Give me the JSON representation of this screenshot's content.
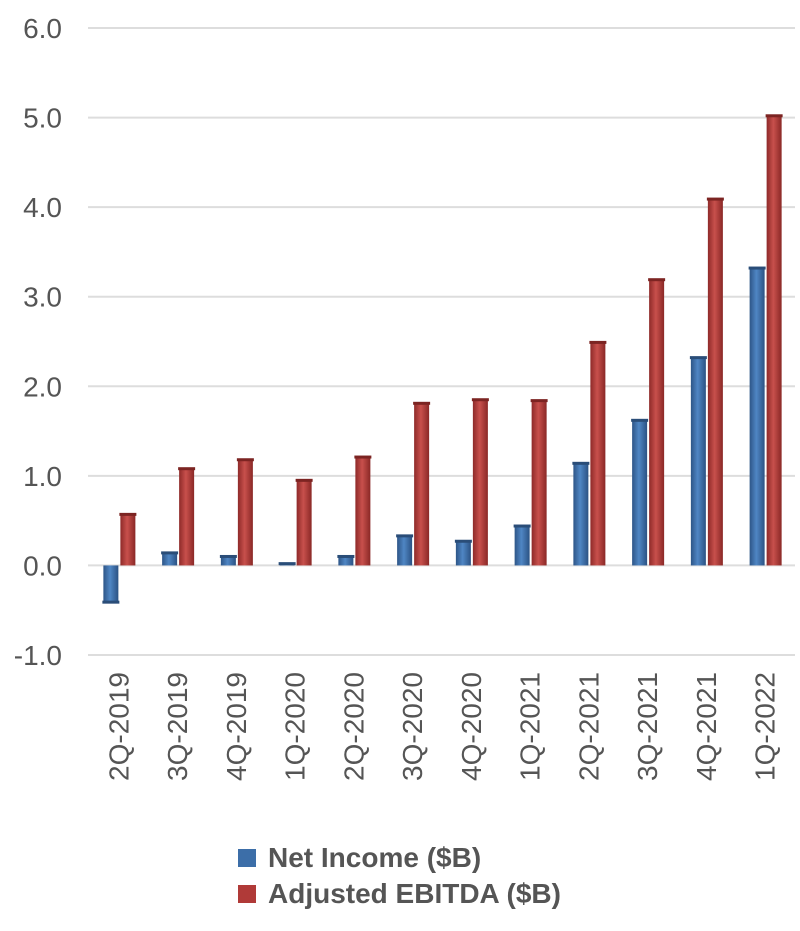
{
  "chart_data": {
    "type": "bar",
    "categories": [
      "2Q-2019",
      "3Q-2019",
      "4Q-2019",
      "1Q-2020",
      "2Q-2020",
      "3Q-2020",
      "4Q-2020",
      "1Q-2021",
      "2Q-2021",
      "3Q-2021",
      "4Q-2021",
      "1Q-2022"
    ],
    "series": [
      {
        "name": "Net Income ($B)",
        "color": "#3c6ea8",
        "values": [
          -0.41,
          0.14,
          0.1,
          0.02,
          0.1,
          0.33,
          0.27,
          0.44,
          1.14,
          1.62,
          2.32,
          3.32
        ]
      },
      {
        "name": "Adjusted EBITDA ($B)",
        "color": "#b03a38",
        "values": [
          0.57,
          1.08,
          1.18,
          0.95,
          1.21,
          1.81,
          1.85,
          1.84,
          2.49,
          3.19,
          4.09,
          5.02
        ]
      }
    ],
    "yticks": [
      "6.0",
      "5.0",
      "4.0",
      "3.0",
      "2.0",
      "1.0",
      "0.0",
      "-1.0"
    ],
    "ylim": [
      -1,
      6
    ],
    "grid": true,
    "legend": "bottom"
  }
}
